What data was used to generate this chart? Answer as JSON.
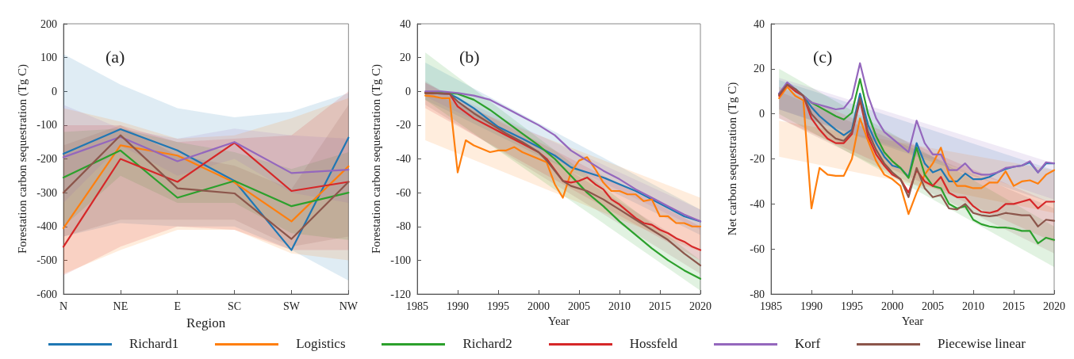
{
  "chart_data": [
    {
      "type": "line",
      "annotations": [
        "(a)"
      ],
      "xlabel": "Region",
      "ylabel": "Forestation carbon sequestration (Tg C)",
      "categories": [
        "N",
        "NE",
        "E",
        "SC",
        "SW",
        "NW"
      ],
      "ylim": [
        -600,
        200
      ],
      "yticks": [
        -600,
        -500,
        -400,
        -300,
        -200,
        -100,
        0,
        100,
        200
      ],
      "legend": "bottom",
      "series": [
        {
          "name": "Richard1",
          "color": "#1f77b4",
          "values": [
            -185,
            -112,
            -175,
            -265,
            -470,
            -137
          ],
          "lower": [
            -430,
            -390,
            -400,
            -400,
            -470,
            -560
          ],
          "upper": [
            110,
            20,
            -50,
            -77,
            -60,
            -5
          ]
        },
        {
          "name": "Logistics",
          "color": "#ff7f0e",
          "values": [
            -405,
            -160,
            -190,
            -270,
            -385,
            -222
          ],
          "lower": [
            -540,
            -470,
            -410,
            -410,
            -480,
            -500
          ],
          "upper": [
            -50,
            -90,
            -140,
            -130,
            -80,
            -20
          ]
        },
        {
          "name": "Richard2",
          "color": "#2ca02c",
          "values": [
            -255,
            -175,
            -315,
            -265,
            -340,
            -300
          ],
          "lower": [
            -400,
            -250,
            -330,
            -330,
            -420,
            -440
          ],
          "upper": [
            -120,
            -110,
            -150,
            -180,
            -230,
            -180
          ]
        },
        {
          "name": "Hossfeld",
          "color": "#d62728",
          "values": [
            -460,
            -200,
            -268,
            -152,
            -295,
            -268
          ],
          "lower": [
            -545,
            -460,
            -400,
            -410,
            -470,
            -470
          ],
          "upper": [
            -100,
            -100,
            -150,
            -140,
            -130,
            0
          ]
        },
        {
          "name": "Korf",
          "color": "#9467bd",
          "values": [
            -195,
            -135,
            -207,
            -150,
            -242,
            -232
          ],
          "lower": [
            -330,
            -160,
            -250,
            -200,
            -300,
            -330
          ],
          "upper": [
            -40,
            -110,
            -140,
            -110,
            -130,
            -140
          ]
        },
        {
          "name": "Piecewise linear",
          "color": "#8c564b",
          "values": [
            -300,
            -130,
            -287,
            -302,
            -437,
            -268
          ],
          "lower": [
            -430,
            -380,
            -380,
            -380,
            -460,
            -430
          ],
          "upper": [
            -160,
            -100,
            -190,
            -220,
            -290,
            -40
          ]
        }
      ]
    },
    {
      "type": "line",
      "annotations": [
        "(b)"
      ],
      "xlabel": "Year",
      "ylabel": "Forestation carbon sequestration (Tg C)",
      "x": [
        1986,
        1987,
        1988,
        1989,
        1990,
        1991,
        1992,
        1993,
        1994,
        1995,
        1996,
        1997,
        1998,
        1999,
        2000,
        2001,
        2002,
        2003,
        2004,
        2005,
        2006,
        2007,
        2008,
        2009,
        2010,
        2011,
        2012,
        2013,
        2014,
        2015,
        2016,
        2017,
        2018,
        2019,
        2020
      ],
      "xlim": [
        1985,
        2020
      ],
      "xticks": [
        1985,
        1990,
        1995,
        2000,
        2005,
        2010,
        2015,
        2020
      ],
      "ylim": [
        -120,
        40
      ],
      "yticks": [
        -120,
        -100,
        -80,
        -60,
        -40,
        -20,
        0,
        20,
        40
      ],
      "legend": "bottom",
      "series": [
        {
          "name": "Richard1",
          "color": "#1f77b4",
          "x": [
            1986,
            1989,
            1990,
            1992,
            1995,
            1998,
            2000,
            2002,
            2004,
            2006,
            2008,
            2010,
            2012,
            2014,
            2016,
            2018,
            2020
          ],
          "values": [
            -1,
            -1.5,
            -4,
            -10,
            -21,
            -28,
            -33,
            -38,
            -45,
            -48,
            -51,
            -55,
            -59,
            -64,
            -69,
            -74,
            -77
          ],
          "lower": [
            -5,
            null,
            null,
            null,
            null,
            null,
            null,
            null,
            null,
            null,
            null,
            null,
            null,
            null,
            null,
            null,
            -85
          ],
          "upper": [
            17,
            null,
            null,
            null,
            null,
            null,
            null,
            null,
            null,
            null,
            null,
            null,
            null,
            null,
            null,
            null,
            -70
          ]
        },
        {
          "name": "Logistics",
          "color": "#ff7f0e",
          "values": [
            -2.5,
            -3,
            -4,
            -4,
            -48,
            -29,
            -32,
            -34,
            -36,
            -35,
            -35,
            -33,
            -36,
            -38,
            -40,
            -42,
            -55,
            -63,
            -48,
            -41,
            -39,
            -46,
            -54,
            -59,
            -59,
            -61,
            -61,
            -65,
            -64,
            -74,
            -74,
            -78,
            -78,
            -80,
            -80
          ],
          "lower": [
            -29,
            null,
            null,
            null,
            null,
            null,
            null,
            null,
            null,
            null,
            null,
            null,
            null,
            null,
            null,
            null,
            null,
            null,
            null,
            null,
            null,
            null,
            null,
            null,
            null,
            null,
            null,
            null,
            null,
            null,
            null,
            null,
            null,
            null,
            -95
          ],
          "upper": [
            0,
            null,
            null,
            null,
            null,
            null,
            null,
            null,
            null,
            null,
            null,
            null,
            null,
            null,
            null,
            null,
            null,
            null,
            null,
            null,
            null,
            null,
            null,
            null,
            null,
            null,
            null,
            null,
            null,
            null,
            null,
            null,
            null,
            null,
            -63
          ]
        },
        {
          "name": "Richard2",
          "color": "#2ca02c",
          "x": [
            1986,
            1989,
            1990,
            1992,
            1994,
            1996,
            1998,
            2000,
            2002,
            2004,
            2006,
            2008,
            2010,
            2012,
            2014,
            2016,
            2018,
            2020
          ],
          "values": [
            -1,
            -1,
            -1.5,
            -5,
            -11,
            -18,
            -25,
            -32,
            -40,
            -50,
            -60,
            -68,
            -77,
            -85,
            -93,
            -100,
            -106,
            -111
          ],
          "lower": [
            -5,
            null,
            null,
            null,
            null,
            null,
            null,
            null,
            null,
            null,
            null,
            null,
            null,
            null,
            null,
            null,
            null,
            -118
          ],
          "upper": [
            23,
            null,
            null,
            null,
            null,
            null,
            null,
            null,
            null,
            null,
            null,
            null,
            null,
            null,
            null,
            null,
            null,
            -100
          ]
        },
        {
          "name": "Hossfeld",
          "color": "#d62728",
          "x": [
            1986,
            1989,
            1990,
            1992,
            1994,
            1996,
            1998,
            2000,
            2001,
            2003,
            2004,
            2005,
            2006,
            2007,
            2008,
            2009,
            2010,
            2011,
            2012,
            2013,
            2014,
            2015,
            2016,
            2017,
            2018,
            2019,
            2020
          ],
          "values": [
            -1,
            -1.5,
            -9,
            -16,
            -21,
            -26,
            -31,
            -36,
            -40,
            -53,
            -54,
            -53,
            -51,
            -55,
            -58,
            -64,
            -67,
            -71,
            -75,
            -78,
            -79,
            -82,
            -84,
            -87,
            -89,
            -92,
            -94
          ],
          "lower": [
            -10,
            null,
            null,
            null,
            null,
            null,
            null,
            null,
            null,
            null,
            null,
            null,
            null,
            null,
            null,
            null,
            null,
            null,
            null,
            null,
            null,
            null,
            null,
            null,
            null,
            null,
            -100
          ],
          "upper": [
            5,
            null,
            null,
            null,
            null,
            null,
            null,
            null,
            null,
            null,
            null,
            null,
            null,
            null,
            null,
            null,
            null,
            null,
            null,
            null,
            null,
            null,
            null,
            null,
            null,
            null,
            -80
          ]
        },
        {
          "name": "Korf",
          "color": "#9467bd",
          "x": [
            1986,
            1988,
            1990,
            1992,
            1994,
            1996,
            1998,
            2000,
            2002,
            2004,
            2006,
            2008,
            2010,
            2012,
            2014,
            2016,
            2018,
            2020
          ],
          "values": [
            0,
            0,
            -1,
            -2.5,
            -5,
            -10,
            -15,
            -20,
            -26,
            -35,
            -41,
            -47,
            -52,
            -58,
            -63,
            -68,
            -73,
            -77
          ],
          "lower": [
            -3,
            null,
            null,
            null,
            null,
            null,
            null,
            null,
            null,
            null,
            null,
            null,
            null,
            null,
            null,
            null,
            null,
            -82
          ],
          "upper": [
            5,
            null,
            null,
            null,
            null,
            null,
            null,
            null,
            null,
            null,
            null,
            null,
            null,
            null,
            null,
            null,
            null,
            -70
          ]
        },
        {
          "name": "Piecewise linear",
          "color": "#8c564b",
          "x": [
            1986,
            1989,
            1990,
            1992,
            1994,
            1996,
            1998,
            2000,
            2001,
            2003,
            2004,
            2006,
            2008,
            2010,
            2012,
            2014,
            2016,
            2018,
            2020
          ],
          "values": [
            -1,
            -1.5,
            -6,
            -13,
            -19,
            -25,
            -30,
            -36,
            -41,
            -53,
            -56,
            -59,
            -64,
            -70,
            -76,
            -82,
            -88,
            -96,
            -103
          ],
          "lower": [
            -8,
            null,
            null,
            null,
            null,
            null,
            null,
            null,
            null,
            null,
            null,
            null,
            null,
            null,
            null,
            null,
            null,
            null,
            -108
          ],
          "upper": [
            6,
            null,
            null,
            null,
            null,
            null,
            null,
            null,
            null,
            null,
            null,
            null,
            null,
            null,
            null,
            null,
            null,
            null,
            -95
          ]
        }
      ]
    },
    {
      "type": "line",
      "annotations": [
        "(c)"
      ],
      "xlabel": "Year",
      "ylabel": "Net carbon sequestration (Tg C)",
      "x": [
        1986,
        1987,
        1988,
        1989,
        1990,
        1991,
        1992,
        1993,
        1994,
        1995,
        1996,
        1997,
        1998,
        1999,
        2000,
        2001,
        2002,
        2003,
        2004,
        2005,
        2006,
        2007,
        2008,
        2009,
        2010,
        2011,
        2012,
        2013,
        2014,
        2015,
        2016,
        2017,
        2018,
        2019,
        2020
      ],
      "xlim": [
        1985,
        2020
      ],
      "xticks": [
        1985,
        1990,
        1995,
        2000,
        2005,
        2010,
        2015,
        2020
      ],
      "ylim": [
        -80,
        40
      ],
      "yticks": [
        -80,
        -60,
        -40,
        -20,
        0,
        20,
        40
      ],
      "legend": "bottom",
      "series": [
        {
          "name": "Richard1",
          "color": "#1f77b4",
          "values": [
            9,
            13,
            11,
            8,
            3,
            -1,
            -4,
            -7,
            -9.5,
            -7,
            9,
            -5,
            -13,
            -19,
            -23,
            -24,
            -28,
            -13,
            -22,
            -26,
            -24.5,
            -30,
            -30,
            -26.5,
            -29,
            -29,
            -28,
            -26,
            -24.5,
            -23.5,
            -23,
            -21.5,
            -26,
            -22,
            -22
          ],
          "lower": [
            2,
            null,
            null,
            null,
            null,
            null,
            null,
            null,
            null,
            null,
            null,
            null,
            null,
            null,
            null,
            null,
            null,
            null,
            null,
            null,
            null,
            null,
            null,
            null,
            null,
            null,
            null,
            null,
            null,
            null,
            null,
            null,
            null,
            null,
            -40
          ],
          "upper": [
            15,
            null,
            null,
            null,
            null,
            null,
            null,
            null,
            null,
            null,
            null,
            null,
            null,
            null,
            null,
            null,
            null,
            null,
            null,
            null,
            null,
            null,
            null,
            null,
            null,
            null,
            null,
            null,
            null,
            null,
            null,
            null,
            null,
            null,
            -25
          ]
        },
        {
          "name": "Logistics",
          "color": "#ff7f0e",
          "values": [
            7,
            12,
            8,
            6,
            -42,
            -24,
            -27,
            -27.5,
            -27.5,
            -20,
            -2,
            -12,
            -21,
            -27,
            -29,
            -32,
            -44.5,
            -35,
            -27,
            -22,
            -15,
            -27,
            -32,
            -32,
            -33,
            -33,
            -30.5,
            -30.5,
            -25.5,
            -32,
            -30,
            -29.5,
            -31,
            -27,
            -25
          ],
          "lower": [
            -19,
            null,
            null,
            null,
            null,
            null,
            null,
            null,
            null,
            null,
            null,
            null,
            null,
            null,
            null,
            null,
            null,
            null,
            null,
            null,
            null,
            null,
            null,
            null,
            null,
            null,
            null,
            null,
            null,
            null,
            null,
            null,
            null,
            null,
            -44
          ],
          "upper": [
            -3,
            null,
            null,
            null,
            null,
            null,
            null,
            null,
            null,
            null,
            null,
            null,
            null,
            null,
            null,
            null,
            null,
            null,
            null,
            null,
            null,
            null,
            null,
            null,
            null,
            null,
            null,
            null,
            null,
            null,
            null,
            null,
            null,
            null,
            -25
          ]
        },
        {
          "name": "Richard2",
          "color": "#2ca02c",
          "values": [
            null,
            null,
            null,
            8,
            5,
            3,
            1,
            -1,
            -2.5,
            0.5,
            15.5,
            0,
            -10,
            -17,
            -21,
            -24,
            -28.5,
            -15,
            -27,
            -32,
            -33,
            -40,
            -42,
            -41,
            -47,
            -49,
            -50,
            -50.5,
            -50.5,
            -51,
            -52,
            -52,
            -57.5,
            -55,
            -56
          ],
          "lower": [
            0,
            null,
            null,
            null,
            null,
            null,
            null,
            null,
            null,
            null,
            null,
            null,
            null,
            null,
            null,
            null,
            null,
            null,
            null,
            null,
            null,
            null,
            null,
            null,
            null,
            null,
            null,
            null,
            null,
            null,
            null,
            null,
            null,
            null,
            -68
          ],
          "upper": [
            20,
            null,
            null,
            null,
            null,
            null,
            null,
            null,
            null,
            null,
            null,
            null,
            null,
            null,
            null,
            null,
            null,
            null,
            null,
            null,
            null,
            null,
            null,
            null,
            null,
            null,
            null,
            null,
            null,
            null,
            null,
            null,
            null,
            null,
            -50
          ]
        },
        {
          "name": "Hossfeld",
          "color": "#d62728",
          "values": [
            8,
            13,
            10,
            8,
            -2,
            -7,
            -11,
            -13,
            -13,
            -9,
            6,
            -10,
            -18,
            -23,
            -27,
            -29,
            -35,
            -25,
            -30,
            -32,
            -28,
            -35,
            -37,
            -37,
            -41,
            -43.5,
            -44,
            -43,
            -40,
            -40,
            -39,
            -38,
            -42,
            -39,
            -39
          ],
          "lower": [
            -2,
            null,
            null,
            null,
            null,
            null,
            null,
            null,
            null,
            null,
            null,
            null,
            null,
            null,
            null,
            null,
            null,
            null,
            null,
            null,
            null,
            null,
            null,
            null,
            null,
            null,
            null,
            null,
            null,
            null,
            null,
            null,
            null,
            null,
            -57
          ],
          "upper": [
            12,
            null,
            null,
            null,
            null,
            null,
            null,
            null,
            null,
            null,
            null,
            null,
            null,
            null,
            null,
            null,
            null,
            null,
            null,
            null,
            null,
            null,
            null,
            null,
            null,
            null,
            null,
            null,
            null,
            null,
            null,
            null,
            null,
            null,
            -40
          ]
        },
        {
          "name": "Korf",
          "color": "#9467bd",
          "values": [
            9,
            14,
            11,
            8,
            5,
            4,
            3,
            2,
            2.5,
            7,
            22.5,
            8,
            -2,
            -8,
            -11,
            -14,
            -17,
            -3,
            -13,
            -18,
            -18,
            -25,
            -25,
            -22,
            -26,
            -27,
            -27,
            -26,
            -24,
            -23.5,
            -23,
            -21,
            -26,
            -21.5,
            -22
          ],
          "lower": [
            2,
            null,
            null,
            null,
            null,
            null,
            null,
            null,
            null,
            null,
            null,
            null,
            null,
            null,
            null,
            null,
            null,
            null,
            null,
            null,
            null,
            null,
            null,
            null,
            null,
            null,
            null,
            null,
            null,
            null,
            null,
            null,
            null,
            null,
            -38
          ],
          "upper": [
            16,
            null,
            null,
            null,
            null,
            null,
            null,
            null,
            null,
            null,
            null,
            null,
            null,
            null,
            null,
            null,
            null,
            null,
            null,
            null,
            null,
            null,
            null,
            null,
            null,
            null,
            null,
            null,
            null,
            null,
            null,
            null,
            null,
            null,
            -22
          ]
        },
        {
          "name": "Piecewise linear",
          "color": "#8c564b",
          "values": [
            8.5,
            13,
            11,
            8,
            0,
            -4,
            -8,
            -11,
            -12,
            -8,
            7,
            -8,
            -16,
            -22,
            -26,
            -29,
            -37,
            -24,
            -33,
            -37,
            -36,
            -42,
            -42.5,
            -40,
            -44,
            -45,
            -45.5,
            -45,
            -44,
            -44.5,
            -45,
            -45,
            -50,
            -47,
            -47.5
          ],
          "lower": [
            -2,
            null,
            null,
            null,
            null,
            null,
            null,
            null,
            null,
            null,
            null,
            null,
            null,
            null,
            null,
            null,
            null,
            null,
            null,
            null,
            null,
            null,
            null,
            null,
            null,
            null,
            null,
            null,
            null,
            null,
            null,
            null,
            null,
            null,
            -62
          ],
          "upper": [
            10,
            null,
            null,
            null,
            null,
            null,
            null,
            null,
            null,
            null,
            null,
            null,
            null,
            null,
            null,
            null,
            null,
            null,
            null,
            null,
            null,
            null,
            null,
            null,
            null,
            null,
            null,
            null,
            null,
            null,
            null,
            null,
            null,
            null,
            -42
          ]
        }
      ]
    }
  ]
}
